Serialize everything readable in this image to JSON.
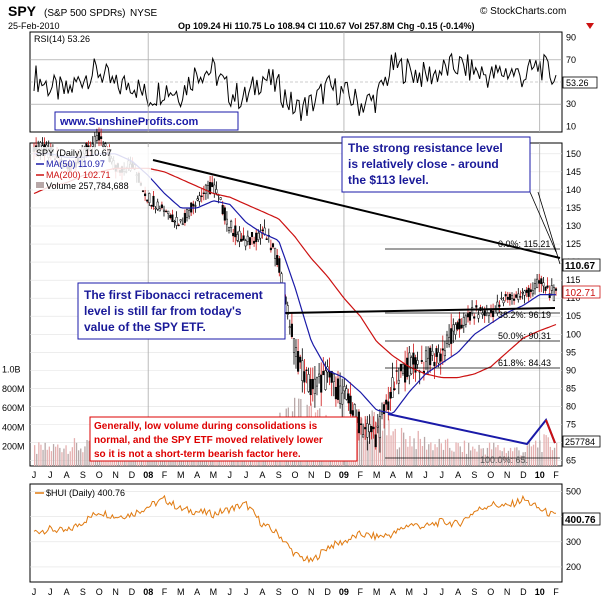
{
  "header": {
    "symbol": "SPY",
    "name": "(S&P 500 SPDRs)",
    "exchange": "NYSE",
    "date": "25-Feb-2010",
    "quote": "Op 109.24  Hi 110.75  Lo 108.94  Cl 110.67  Vol 257.8M  Chg -0.15 (-0.14%)",
    "copyright": "© StockCharts.com"
  },
  "rsi": {
    "label": "RSI(14) 53.26",
    "current": "53.26",
    "ticks": [
      "90",
      "70",
      "50",
      "30",
      "10"
    ]
  },
  "website": "www.SunshineProfits.com",
  "price_panel": {
    "legend": [
      {
        "text": "SPY (Daily) 110.67",
        "color": "#000000"
      },
      {
        "text": "MA(50) 110.97",
        "color": "#1a1aa8"
      },
      {
        "text": "MA(200) 102.71",
        "color": "#cc1111"
      },
      {
        "text": "Volume 257,784,688",
        "color": "#000000"
      }
    ],
    "price_ticks": [
      "150",
      "145",
      "140",
      "135",
      "130",
      "125",
      "120",
      "115",
      "110",
      "105",
      "100",
      "95",
      "90",
      "85",
      "80",
      "75",
      "70",
      "65"
    ],
    "current_price": "110.67",
    "ma200_value": "102.71",
    "volume_value": "257784",
    "volume_ticks": [
      "1.0B",
      "800M",
      "600M",
      "400M",
      "200M"
    ]
  },
  "fibonacci": [
    {
      "label": "0.0%: 115.21"
    },
    {
      "label": "38.2%: 96.19"
    },
    {
      "label": "50.0%: 90.31"
    },
    {
      "label": "61.8%: 84.43"
    }
  ],
  "fib_bottom_label": "100.0%: 65.",
  "annotations": {
    "resistance": [
      "The strong resistance level",
      "is relatively close - around",
      "the $113 level."
    ],
    "fibonacci": [
      "The first Fibonacci retracement",
      "level is still far from today's",
      "value of the SPY ETF."
    ],
    "volume": [
      "Generally, low volume during consolidations is",
      "normal, and the SPY ETF moved relatively lower",
      "so it is not a short-term bearish factor here."
    ]
  },
  "hui": {
    "label": "$HUI (Daily) 400.76",
    "current": "400.76",
    "ticks": [
      "500",
      "400",
      "300",
      "200"
    ]
  },
  "x_axis": {
    "labels": [
      "J",
      "J",
      "A",
      "S",
      "O",
      "N",
      "D",
      "08",
      "F",
      "M",
      "A",
      "M",
      "J",
      "J",
      "A",
      "S",
      "O",
      "N",
      "D",
      "09",
      "F",
      "M",
      "A",
      "M",
      "J",
      "J",
      "A",
      "S",
      "O",
      "N",
      "D",
      "10",
      "F"
    ],
    "bold": [
      "08",
      "09",
      "10"
    ]
  },
  "colors": {
    "price": "#000000",
    "ma50": "#1a1aa8",
    "ma200": "#cc1111",
    "volume_up": "#e5b0b0",
    "volume_down": "#b8a8a8",
    "hui": "#e07a10",
    "annotation_text": "#1a1a99",
    "annotation_volume_text": "#dd0000",
    "website": "#1a1aa8"
  },
  "chart_data": [
    {
      "type": "line",
      "title": "SPY (S&P 500 SPDRs) NYSE",
      "series": [
        {
          "name": "SPY (Daily)",
          "x": [
            "2007-06",
            "2007-07",
            "2007-08",
            "2007-09",
            "2007-10",
            "2007-11",
            "2007-12",
            "2008-01",
            "2008-02",
            "2008-03",
            "2008-04",
            "2008-05",
            "2008-06",
            "2008-07",
            "2008-08",
            "2008-09",
            "2008-10",
            "2008-11",
            "2008-12",
            "2009-01",
            "2009-02",
            "2009-03",
            "2009-04",
            "2009-05",
            "2009-06",
            "2009-07",
            "2009-08",
            "2009-09",
            "2009-10",
            "2009-11",
            "2009-12",
            "2010-01",
            "2010-02"
          ],
          "values": [
            152,
            150,
            146,
            150,
            154,
            146,
            147,
            138,
            135,
            131,
            138,
            141,
            130,
            125,
            129,
            120,
            95,
            85,
            88,
            83,
            75,
            72,
            85,
            92,
            92,
            95,
            102,
            106,
            106,
            110,
            111,
            114,
            110.67
          ]
        },
        {
          "name": "MA(50)",
          "values": [
            150,
            150,
            149,
            149,
            150,
            150,
            148,
            144,
            139,
            135,
            135,
            137,
            136,
            131,
            128,
            126,
            113,
            98,
            90,
            88,
            84,
            79,
            78,
            84,
            89,
            92,
            95,
            100,
            103,
            106,
            108,
            111,
            110.97
          ]
        },
        {
          "name": "MA(200)",
          "values": [
            139,
            141,
            142,
            144,
            145,
            146,
            146,
            146,
            145,
            143,
            141,
            139,
            138,
            136,
            134,
            132,
            127,
            121,
            116,
            110,
            105,
            98,
            94,
            91,
            89,
            88,
            88,
            89,
            91,
            95,
            99,
            101,
            102.71
          ]
        }
      ],
      "ylim": [
        65,
        152
      ]
    },
    {
      "type": "line",
      "title": "RSI(14)",
      "series": [
        {
          "name": "RSI(14)",
          "values": [
            55,
            45,
            40,
            55,
            60,
            45,
            50,
            35,
            45,
            40,
            60,
            60,
            40,
            35,
            55,
            45,
            25,
            30,
            45,
            40,
            30,
            35,
            65,
            60,
            55,
            60,
            65,
            60,
            55,
            60,
            55,
            65,
            53.26
          ]
        }
      ],
      "ylim": [
        10,
        90
      ]
    },
    {
      "type": "line",
      "title": "$HUI (Daily)",
      "series": [
        {
          "name": "$HUI",
          "values": [
            340,
            350,
            340,
            380,
            420,
            400,
            410,
            440,
            470,
            430,
            420,
            410,
            430,
            450,
            370,
            330,
            250,
            220,
            280,
            300,
            330,
            320,
            330,
            370,
            360,
            380,
            370,
            420,
            450,
            440,
            470,
            430,
            400.76
          ]
        }
      ],
      "ylim": [
        150,
        520
      ]
    }
  ]
}
